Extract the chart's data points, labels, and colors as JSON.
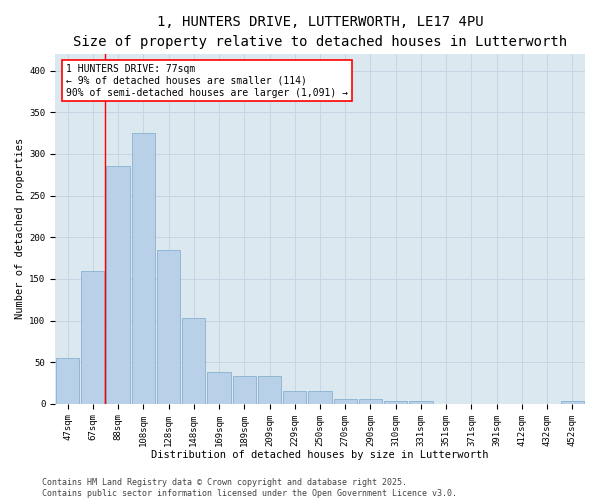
{
  "title_line1": "1, HUNTERS DRIVE, LUTTERWORTH, LE17 4PU",
  "title_line2": "Size of property relative to detached houses in Lutterworth",
  "xlabel": "Distribution of detached houses by size in Lutterworth",
  "ylabel": "Number of detached properties",
  "categories": [
    "47sqm",
    "67sqm",
    "88sqm",
    "108sqm",
    "128sqm",
    "148sqm",
    "169sqm",
    "189sqm",
    "209sqm",
    "229sqm",
    "250sqm",
    "270sqm",
    "290sqm",
    "310sqm",
    "331sqm",
    "351sqm",
    "371sqm",
    "391sqm",
    "412sqm",
    "432sqm",
    "452sqm"
  ],
  "values": [
    55,
    160,
    285,
    325,
    185,
    103,
    38,
    33,
    33,
    15,
    15,
    6,
    6,
    4,
    4,
    0,
    0,
    0,
    0,
    0,
    3
  ],
  "bar_color": "#b8d0e8",
  "bar_edge_color": "#7aaaca",
  "bar_edge_width": 0.5,
  "annotation_box_text": "1 HUNTERS DRIVE: 77sqm\n← 9% of detached houses are smaller (114)\n90% of semi-detached houses are larger (1,091) →",
  "ylim": [
    0,
    420
  ],
  "yticks": [
    0,
    50,
    100,
    150,
    200,
    250,
    300,
    350,
    400
  ],
  "grid_color": "#c8d4e4",
  "background_color": "#dce8f0",
  "footer_text": "Contains HM Land Registry data © Crown copyright and database right 2025.\nContains public sector information licensed under the Open Government Licence v3.0.",
  "title_fontsize": 10,
  "subtitle_fontsize": 9,
  "axis_label_fontsize": 7.5,
  "tick_fontsize": 6.5,
  "annotation_fontsize": 7,
  "footer_fontsize": 6
}
